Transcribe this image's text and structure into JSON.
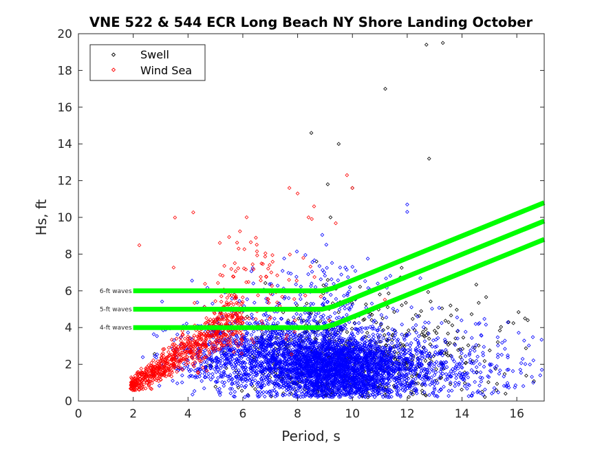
{
  "chart_data": {
    "type": "scatter",
    "title": "VNE 522 & 544 ECR Long Beach NY Shore Landing October",
    "xlabel": "Period, s",
    "ylabel": "Hs, ft",
    "xlim": [
      0,
      17
    ],
    "ylim": [
      0,
      20
    ],
    "xticks": [
      "0",
      "2",
      "4",
      "6",
      "8",
      "10",
      "12",
      "14",
      "16"
    ],
    "yticks": [
      "0",
      "2",
      "4",
      "6",
      "8",
      "10",
      "12",
      "14",
      "16",
      "18",
      "20"
    ],
    "grid": false,
    "legend": {
      "placement": "top-left",
      "entries": [
        {
          "label": "Swell",
          "color": "#000000",
          "marker": "diamond"
        },
        {
          "label": "Wind Sea",
          "color": "#ff0000",
          "marker": "diamond"
        }
      ]
    },
    "scatter_series": [
      {
        "id": "swell-black",
        "color": "#000000",
        "clusters": [
          {
            "count": 420,
            "t_mean": 9.5,
            "t_sd": 2.0,
            "hs_mean": 2.5,
            "hs_sd": 1.5
          },
          {
            "count": 90,
            "t_mean": 13.0,
            "t_sd": 2.0,
            "hs_mean": 3.0,
            "hs_sd": 2.0
          }
        ],
        "points": [
          [
            12.7,
            19.4
          ],
          [
            13.3,
            19.5
          ],
          [
            11.2,
            17.0
          ],
          [
            8.5,
            14.6
          ],
          [
            9.5,
            14.0
          ],
          [
            12.8,
            13.2
          ],
          [
            9.1,
            11.8
          ],
          [
            10.0,
            11.6
          ],
          [
            9.2,
            10.0
          ],
          [
            16.3,
            4.5
          ],
          [
            16.4,
            4.4
          ],
          [
            15.7,
            4.3
          ]
        ]
      },
      {
        "id": "swell-blue",
        "color": "#0000ff",
        "clusters": [
          {
            "count": 2500,
            "t_mean": 9.6,
            "t_sd": 1.3,
            "hs_mean": 1.8,
            "hs_sd": 0.9
          },
          {
            "count": 1200,
            "t_mean": 6.6,
            "t_sd": 1.5,
            "hs_mean": 2.5,
            "hs_sd": 1.1
          },
          {
            "count": 300,
            "t_mean": 13.0,
            "t_sd": 1.4,
            "hs_mean": 1.8,
            "hs_sd": 1.0
          },
          {
            "count": 220,
            "t_mean": 9.0,
            "t_sd": 1.5,
            "hs_mean": 5.0,
            "hs_sd": 1.5
          },
          {
            "count": 60,
            "t_mean": 15.0,
            "t_sd": 1.2,
            "hs_mean": 2.0,
            "hs_sd": 1.2
          }
        ],
        "points": [
          [
            12.0,
            10.7
          ],
          [
            12.0,
            10.3
          ],
          [
            16.6,
            1.0
          ],
          [
            14.5,
            4.2
          ],
          [
            14.6,
            4.2
          ]
        ]
      },
      {
        "id": "wind-sea-red",
        "color": "#ff0000",
        "bands": [
          {
            "count": 750,
            "t_min": 1.9,
            "t_max": 6.0,
            "hs_at_tmin": 0.8,
            "slope": 0.95,
            "hs_sd": 0.5
          }
        ],
        "clusters": [
          {
            "count": 110,
            "t_mean": 6.6,
            "t_sd": 1.3,
            "hs_mean": 6.0,
            "hs_sd": 1.8
          }
        ],
        "points": [
          [
            9.8,
            12.3
          ],
          [
            10.0,
            11.6
          ],
          [
            7.7,
            11.6
          ],
          [
            8.0,
            11.3
          ],
          [
            8.4,
            10.0
          ],
          [
            8.6,
            10.6
          ]
        ]
      }
    ],
    "threshold_lines": [
      {
        "label": "6-ft waves",
        "color": "#00ff00",
        "points": [
          [
            2,
            6
          ],
          [
            8.9,
            6
          ],
          [
            9.3,
            6.15
          ],
          [
            17,
            10.8
          ]
        ]
      },
      {
        "label": "5-ft waves",
        "color": "#00ff00",
        "points": [
          [
            2,
            5
          ],
          [
            8.9,
            5
          ],
          [
            9.3,
            5.15
          ],
          [
            17,
            9.8
          ]
        ]
      },
      {
        "label": "4-ft waves",
        "color": "#00ff00",
        "points": [
          [
            2,
            4
          ],
          [
            8.9,
            4
          ],
          [
            9.3,
            4.15
          ],
          [
            17,
            8.8
          ]
        ]
      }
    ]
  }
}
